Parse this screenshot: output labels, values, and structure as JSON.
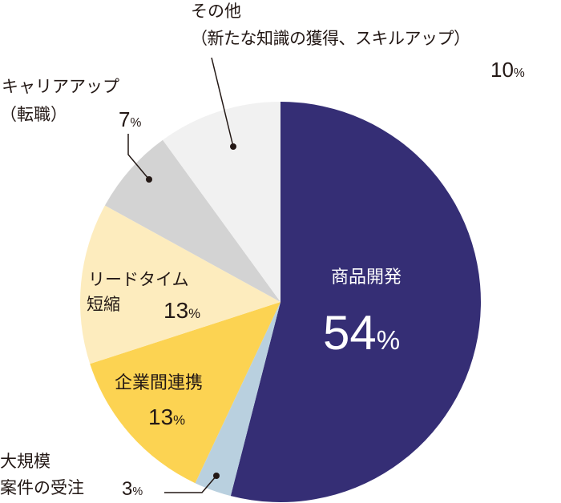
{
  "chart_data": {
    "type": "pie",
    "title": "",
    "start_angle_deg": 0,
    "direction": "clockwise",
    "center": [
      350,
      377
    ],
    "radius": 250,
    "slices": [
      {
        "name": "商品開発",
        "value": 54,
        "color": "#352e75"
      },
      {
        "name": "大規模案件の受注",
        "value": 3,
        "color": "#b9d0df"
      },
      {
        "name": "企業間連携",
        "value": 13,
        "color": "#fcd352"
      },
      {
        "name": "リードタイム短縮",
        "value": 13,
        "color": "#fdecbe"
      },
      {
        "name": "キャリアアップ（転職）",
        "value": 7,
        "color": "#d3d3d3"
      },
      {
        "name": "その他（新たな知識の獲得、スキルアップ）",
        "value": 10,
        "color": "#f1f1f1"
      }
    ]
  },
  "labels": {
    "product": {
      "line1": "商品開発",
      "num": "54",
      "unit": "%"
    },
    "large": {
      "line1": "大規模",
      "line2": "案件の受注",
      "num": "3",
      "unit": "%"
    },
    "collab": {
      "line1": "企業間連携",
      "num": "13",
      "unit": "%"
    },
    "lead": {
      "line1": "リードタイム",
      "line2": "短縮",
      "num": "13",
      "unit": "%"
    },
    "career": {
      "line1": "キャリアアップ",
      "line2": "（転職）",
      "num": "7",
      "unit": "%"
    },
    "other": {
      "line1": "その他",
      "line2": "（新たな知識の獲得、スキルアップ）",
      "num": "10",
      "unit": "%"
    }
  }
}
